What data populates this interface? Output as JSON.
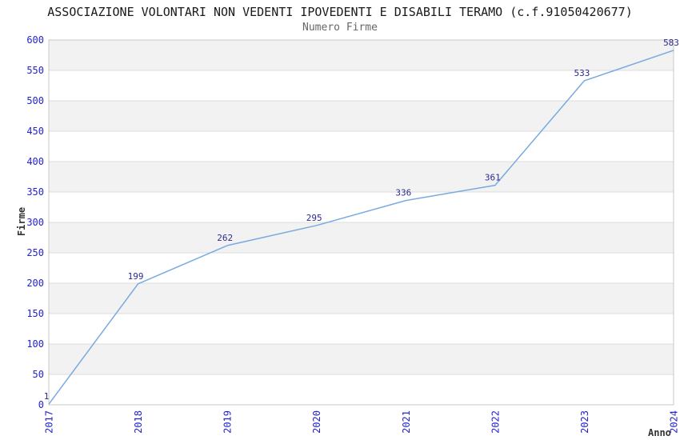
{
  "chart": {
    "title": "ASSOCIAZIONE VOLONTARI NON VEDENTI IPOVEDENTI E DISABILI TERAMO (c.f.91050420677)",
    "subtitle": "Numero Firme",
    "ylabel": "Firme",
    "xlabel": "Anno"
  },
  "chart_data": {
    "type": "line",
    "title": "ASSOCIAZIONE VOLONTARI NON VEDENTI IPOVEDENTI E DISABILI TERAMO (c.f.91050420677)",
    "subtitle": "Numero Firme",
    "xlabel": "Anno",
    "ylabel": "Firme",
    "categories": [
      "2017",
      "2018",
      "2019",
      "2020",
      "2021",
      "2022",
      "2023",
      "2024"
    ],
    "values": [
      1,
      199,
      262,
      295,
      336,
      361,
      533,
      583
    ],
    "ylim": [
      0,
      600
    ],
    "ytick_step": 50,
    "grid": true,
    "alternating_bands": true,
    "data_labels_shown": true,
    "legend_position": "none",
    "colors": {
      "line": "#78aae0",
      "tick_label": "#2323cc",
      "value_label": "#2b2b8f",
      "band": "#f2f2f2",
      "gridline": "#dcdcdc",
      "plot_border": "#c9c9c9",
      "title": "#1a1a1a",
      "subtitle": "#666666",
      "axis_title": "#333333",
      "background": "#ffffff"
    }
  }
}
